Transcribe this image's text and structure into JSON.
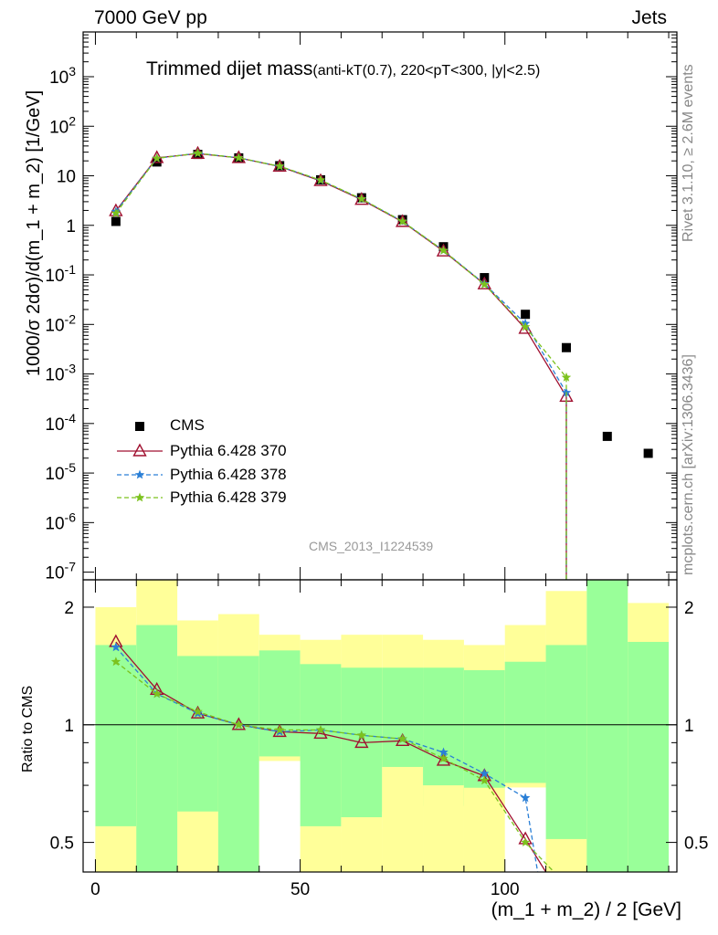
{
  "header": {
    "left": "7000 GeV pp",
    "right": "Jets"
  },
  "plot_title": "Trimmed dijet mass",
  "plot_subtitle": "(anti-kT(0.7), 220<pT<300, |y|<2.5)",
  "side_labels": {
    "rivet": "Rivet 3.1.10, ≥ 2.6M events",
    "mcplots": "mcplots.cern.ch [arXiv:1306.3436]"
  },
  "watermark": "CMS_2013_I1224539",
  "chart_data": [
    {
      "type": "scatter",
      "title": "Trimmed dijet mass",
      "ylabel": "1000/σ 2dσ)/d(m_1 + m_2) [1/GeV]",
      "xlabel": "(m_1 + m_2) / 2 [GeV]",
      "yscale": "log",
      "xlim": [
        -3,
        142
      ],
      "ylim": [
        7e-08,
        8000
      ],
      "x_ticks": [
        0,
        50,
        100
      ],
      "y_ticks": [
        "10^-7",
        "10^-6",
        "10^-5",
        "10^-4",
        "10^-3",
        "10^-2",
        "10^-1",
        "1",
        "10",
        "10^2",
        "10^3"
      ],
      "legend_position": "lower-left",
      "series": [
        {
          "name": "CMS",
          "color": "#000000",
          "marker": "square",
          "x": [
            5,
            15,
            25,
            35,
            45,
            55,
            65,
            75,
            85,
            95,
            105,
            115,
            125,
            135
          ],
          "y": [
            1.2,
            19,
            27,
            23,
            16,
            8.3,
            3.6,
            1.3,
            0.37,
            0.088,
            0.016,
            0.0034,
            5.5e-05,
            2.5e-05
          ]
        },
        {
          "name": "Pythia 6.428 370",
          "color": "#a01030",
          "marker": "open-triangle",
          "x": [
            5,
            15,
            25,
            35,
            45,
            55,
            65,
            75,
            85,
            95,
            105,
            115
          ],
          "y": [
            1.95,
            23,
            28,
            23,
            15.4,
            7.9,
            3.3,
            1.18,
            0.3,
            0.065,
            0.0082,
            0.00035
          ]
        },
        {
          "name": "Pythia 6.428 378",
          "color": "#2a7fd6",
          "marker": "star",
          "x": [
            5,
            15,
            25,
            35,
            45,
            55,
            65,
            75,
            85,
            95,
            105,
            115
          ],
          "y": [
            1.9,
            22.5,
            28.5,
            23,
            15.5,
            8.1,
            3.4,
            1.2,
            0.31,
            0.066,
            0.0104,
            0.00042
          ]
        },
        {
          "name": "Pythia 6.428 379",
          "color": "#7cc21e",
          "marker": "star",
          "x": [
            5,
            15,
            25,
            35,
            45,
            55,
            65,
            75,
            85,
            95,
            105,
            115
          ],
          "y": [
            1.75,
            22.5,
            28.5,
            23,
            15.6,
            8.2,
            3.4,
            1.2,
            0.31,
            0.064,
            0.0089,
            0.00085
          ]
        }
      ]
    },
    {
      "type": "line",
      "ylabel": "Ratio to CMS",
      "xlabel": "(m_1 + m_2) / 2 [GeV]",
      "yscale": "log",
      "xlim": [
        -3,
        142
      ],
      "ylim": [
        0.42,
        2.35
      ],
      "y_ticks": [
        0.5,
        1,
        2
      ],
      "reference_line": 1,
      "bands": {
        "bin_edges": [
          0,
          10,
          20,
          30,
          40,
          50,
          60,
          70,
          80,
          90,
          100,
          110,
          120,
          130,
          140
        ],
        "inner_low": [
          0.42,
          0.42,
          0.42,
          0.42,
          0.55,
          0.55,
          0.58,
          0.6,
          0.62,
          0.62,
          0.62,
          0.42,
          0.42,
          0.42
        ],
        "inner_high": [
          1.6,
          1.8,
          1.5,
          1.5,
          1.55,
          1.43,
          1.4,
          1.4,
          1.4,
          1.38,
          1.45,
          1.6,
          2.35,
          1.63
        ],
        "outer_low": [
          0.42,
          0.42,
          0.42,
          0.42,
          0.42,
          0.42,
          0.42,
          0.42,
          0.42,
          0.42,
          0.42,
          0.42,
          0.42,
          0.42
        ],
        "outer_high": [
          2.0,
          2.35,
          1.85,
          1.92,
          1.7,
          1.65,
          1.7,
          1.7,
          1.65,
          1.6,
          1.8,
          2.2,
          2.35,
          2.05
        ],
        "white_gaps_low": [
          0.55,
          0.42,
          0.6,
          0.42,
          0.83,
          0.53,
          0.54,
          0.78,
          0.7,
          0.69,
          0.71,
          0.51,
          0.42,
          0.42
        ],
        "inner_color": "#99ff99",
        "outer_color": "#ffff99"
      },
      "series": [
        {
          "name": "Pythia 6.428 370",
          "color": "#a01030",
          "x": [
            5,
            15,
            25,
            35,
            45,
            55,
            65,
            75,
            85,
            95,
            105,
            110
          ],
          "y": [
            1.63,
            1.23,
            1.07,
            1.0,
            0.96,
            0.95,
            0.9,
            0.91,
            0.81,
            0.74,
            0.51,
            0.3
          ]
        },
        {
          "name": "Pythia 6.428 378",
          "color": "#2a7fd6",
          "x": [
            5,
            15,
            25,
            35,
            45,
            55,
            65,
            75,
            85,
            95,
            105,
            108
          ],
          "y": [
            1.58,
            1.2,
            1.07,
            1.0,
            0.96,
            0.97,
            0.94,
            0.92,
            0.85,
            0.75,
            0.65,
            0.3
          ]
        },
        {
          "name": "Pythia 6.428 379",
          "color": "#7cc21e",
          "x": [
            5,
            15,
            25,
            35,
            45,
            55,
            65,
            75,
            85,
            95,
            105,
            112
          ],
          "y": [
            1.45,
            1.2,
            1.08,
            1.0,
            0.97,
            0.97,
            0.94,
            0.92,
            0.82,
            0.72,
            0.5,
            0.3
          ]
        }
      ]
    }
  ]
}
